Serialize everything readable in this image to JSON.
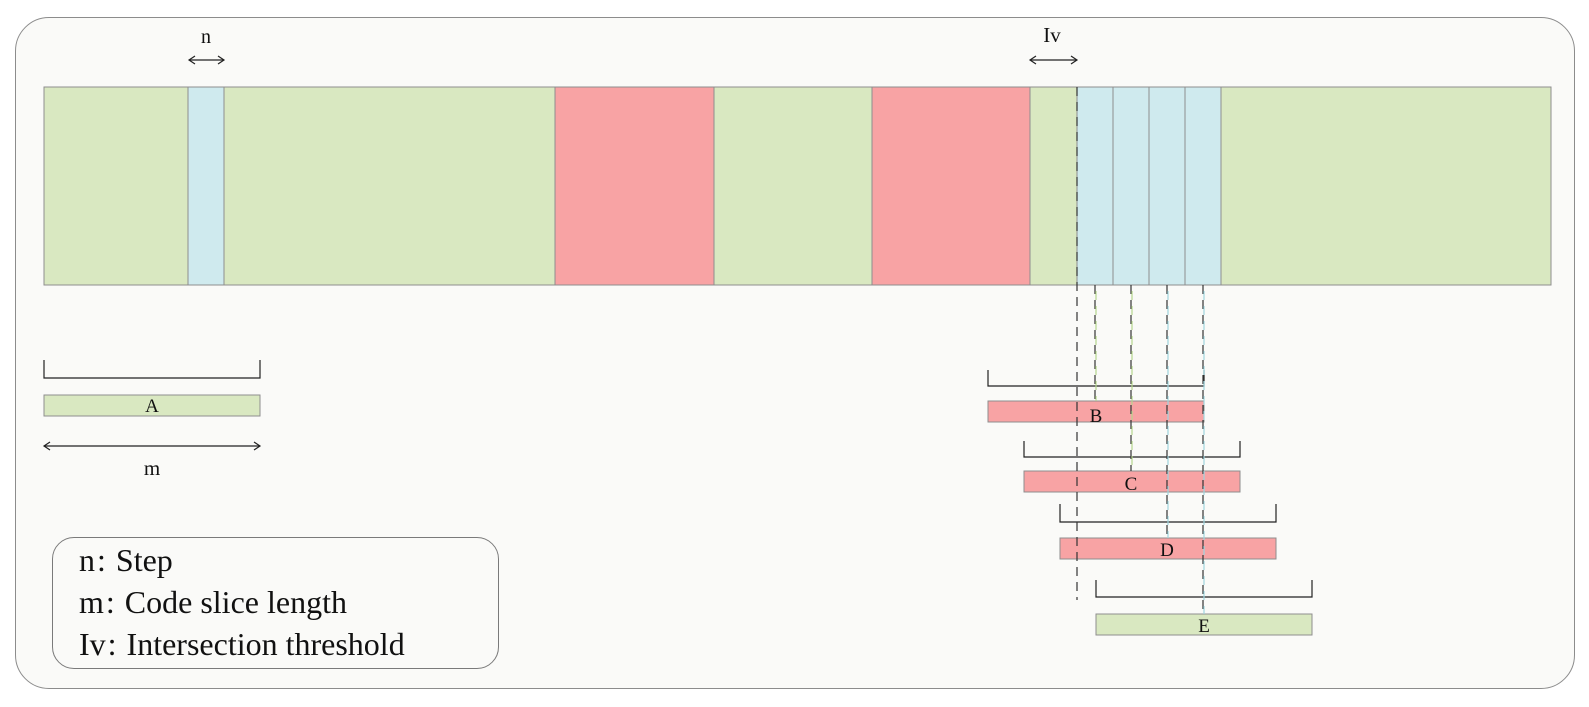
{
  "colors": {
    "normal": "#d9e8c1",
    "step": "#cfeaee",
    "highlight": "#f8a3a4",
    "outline": "#8e8e8e",
    "frame_bg": "#fafaf8"
  },
  "labels": {
    "n": "n",
    "iv": "Iv",
    "m": "m"
  },
  "slices": {
    "A": "A",
    "B": "B",
    "C": "C",
    "D": "D",
    "E": "E"
  },
  "legend": [
    {
      "key": "n",
      "sep": ":",
      "text": "Step"
    },
    {
      "key": "m",
      "sep": ":",
      "text": "Code slice length"
    },
    {
      "key": "Iv",
      "sep": ":",
      "text": "Intersection threshold"
    }
  ]
}
